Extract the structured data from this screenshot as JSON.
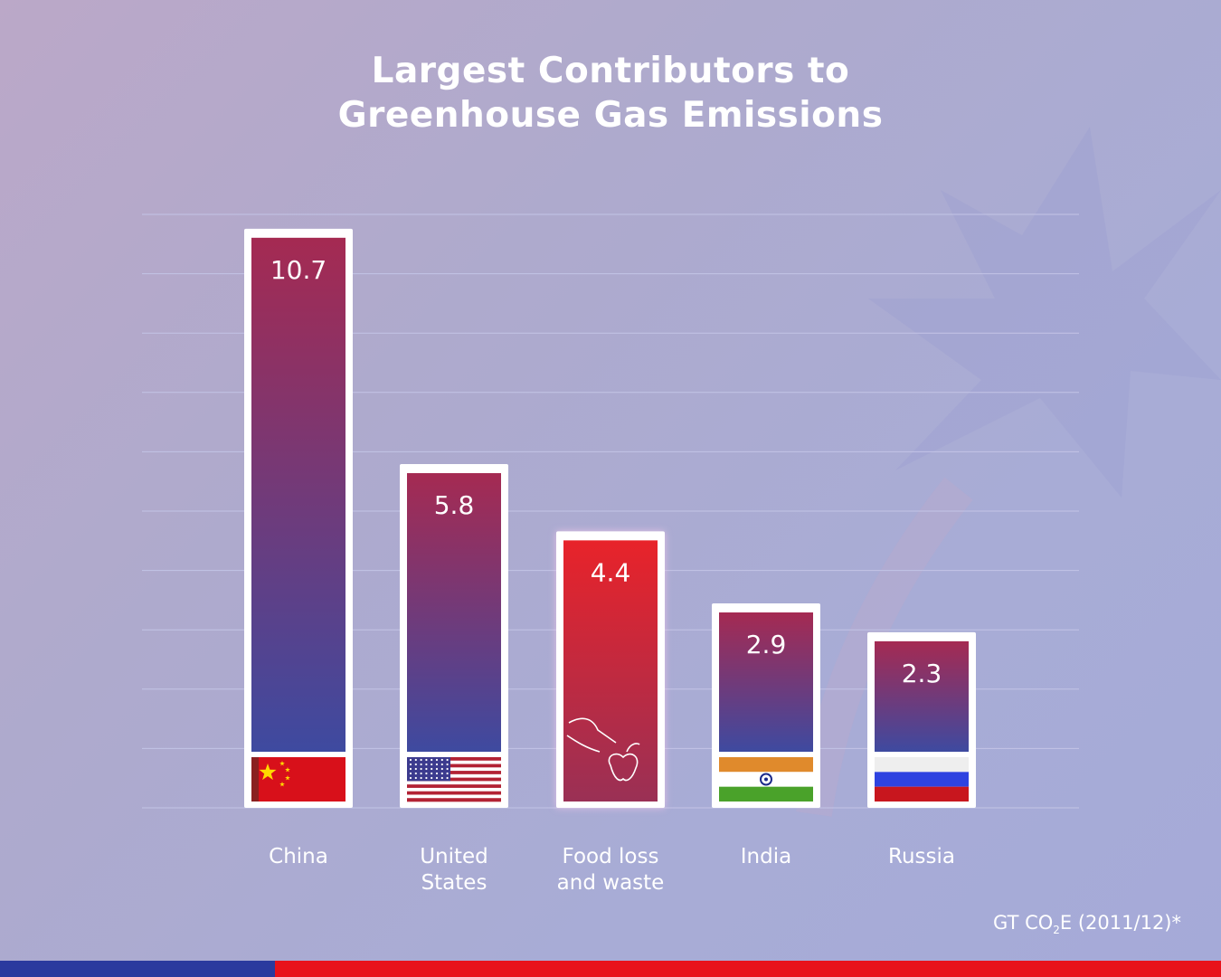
{
  "title_line1": "Largest Contributors to",
  "title_line2": "Greenhouse Gas Emissions",
  "unit_note_prefix": "GT CO",
  "unit_note_sub": "2",
  "unit_note_suffix": "E (2011/12)*",
  "colors": {
    "bar_top_red": "#a52a52",
    "bar_bottom_blue": "#3e4aa0",
    "food_top_red": "#e8232a",
    "food_bottom": "#9a3055",
    "bottom_bar_blue": "#2b3a9e",
    "bottom_bar_red": "#e8121b"
  },
  "chart_data": {
    "type": "bar",
    "title": "Largest Contributors to Greenhouse Gas Emissions",
    "categories": [
      "China",
      "United States",
      "Food loss and waste",
      "India",
      "Russia"
    ],
    "category_lines": [
      [
        "China"
      ],
      [
        "United",
        "States"
      ],
      [
        "Food loss",
        "and waste"
      ],
      [
        "India"
      ],
      [
        "Russia"
      ]
    ],
    "values": [
      10.7,
      5.8,
      4.4,
      2.9,
      2.3
    ],
    "value_labels": [
      "10.7",
      "5.8",
      "4.4",
      "2.9",
      "2.3"
    ],
    "icons": [
      "china-flag-icon",
      "usa-flag-icon",
      "hand-apple-icon",
      "india-flag-icon",
      "russia-flag-icon"
    ],
    "ylim": [
      0,
      12
    ],
    "grid": true,
    "legend": "none"
  }
}
